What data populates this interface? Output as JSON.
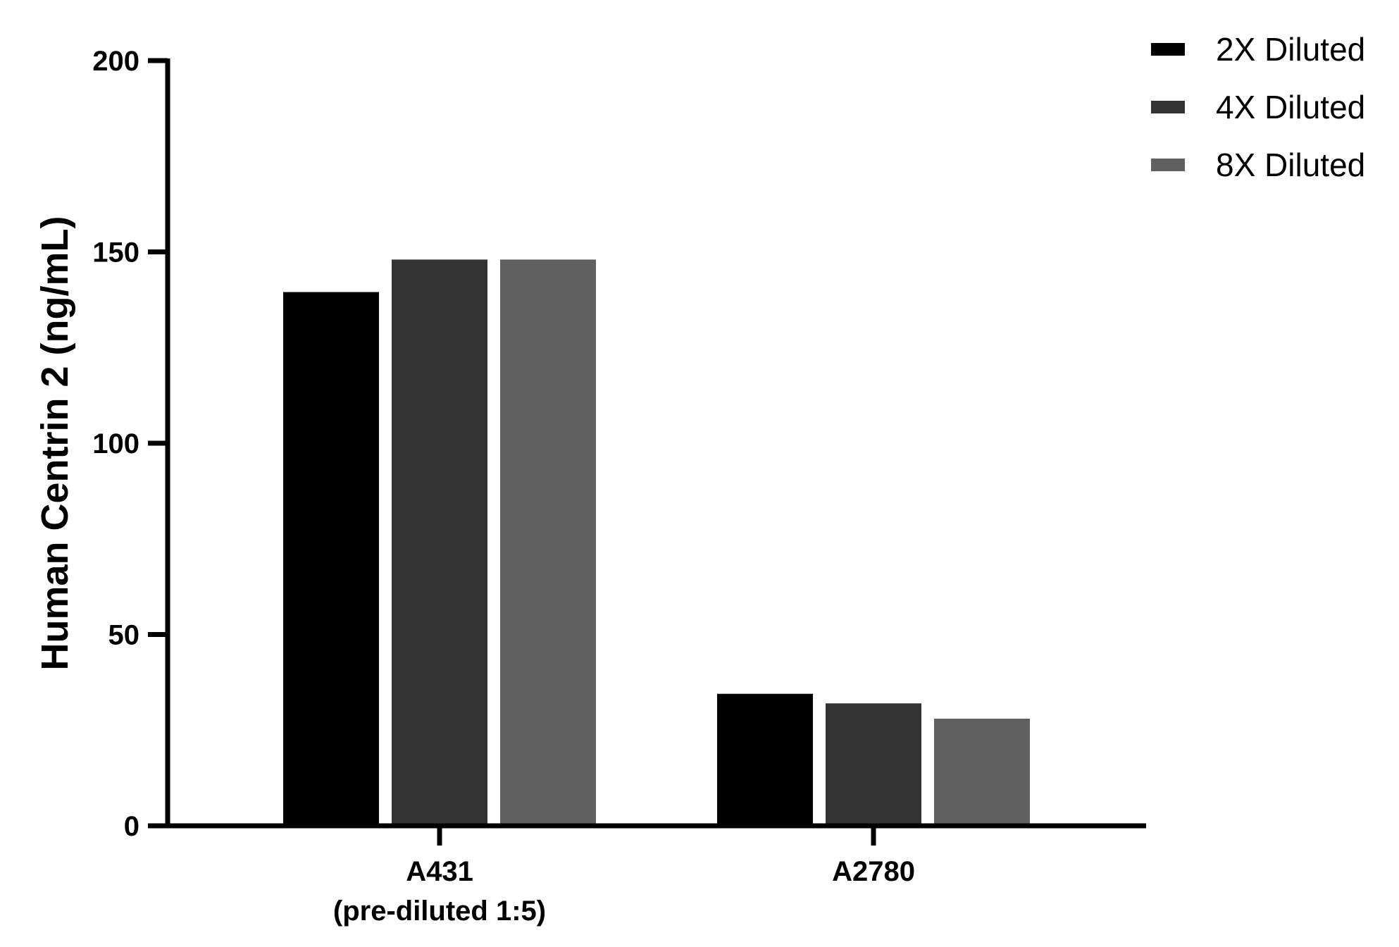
{
  "chart_data": {
    "type": "bar",
    "title": "",
    "xlabel": "",
    "ylabel": "Human Centrin 2 (ng/mL)",
    "ylim": [
      0,
      200
    ],
    "yticks": [
      0,
      50,
      100,
      150,
      200
    ],
    "grid": false,
    "legend_position": "top-right",
    "categories": [
      {
        "lines": [
          "A431",
          "(pre-diluted 1:5)"
        ]
      },
      {
        "lines": [
          "A2780"
        ]
      }
    ],
    "series": [
      {
        "name": "2X Diluted",
        "color": "#000000",
        "values": [
          139.5,
          34.5
        ]
      },
      {
        "name": "4X Diluted",
        "color": "#333333",
        "values": [
          148,
          32
        ]
      },
      {
        "name": "8X Diluted",
        "color": "#606060",
        "values": [
          148,
          28
        ]
      }
    ]
  }
}
